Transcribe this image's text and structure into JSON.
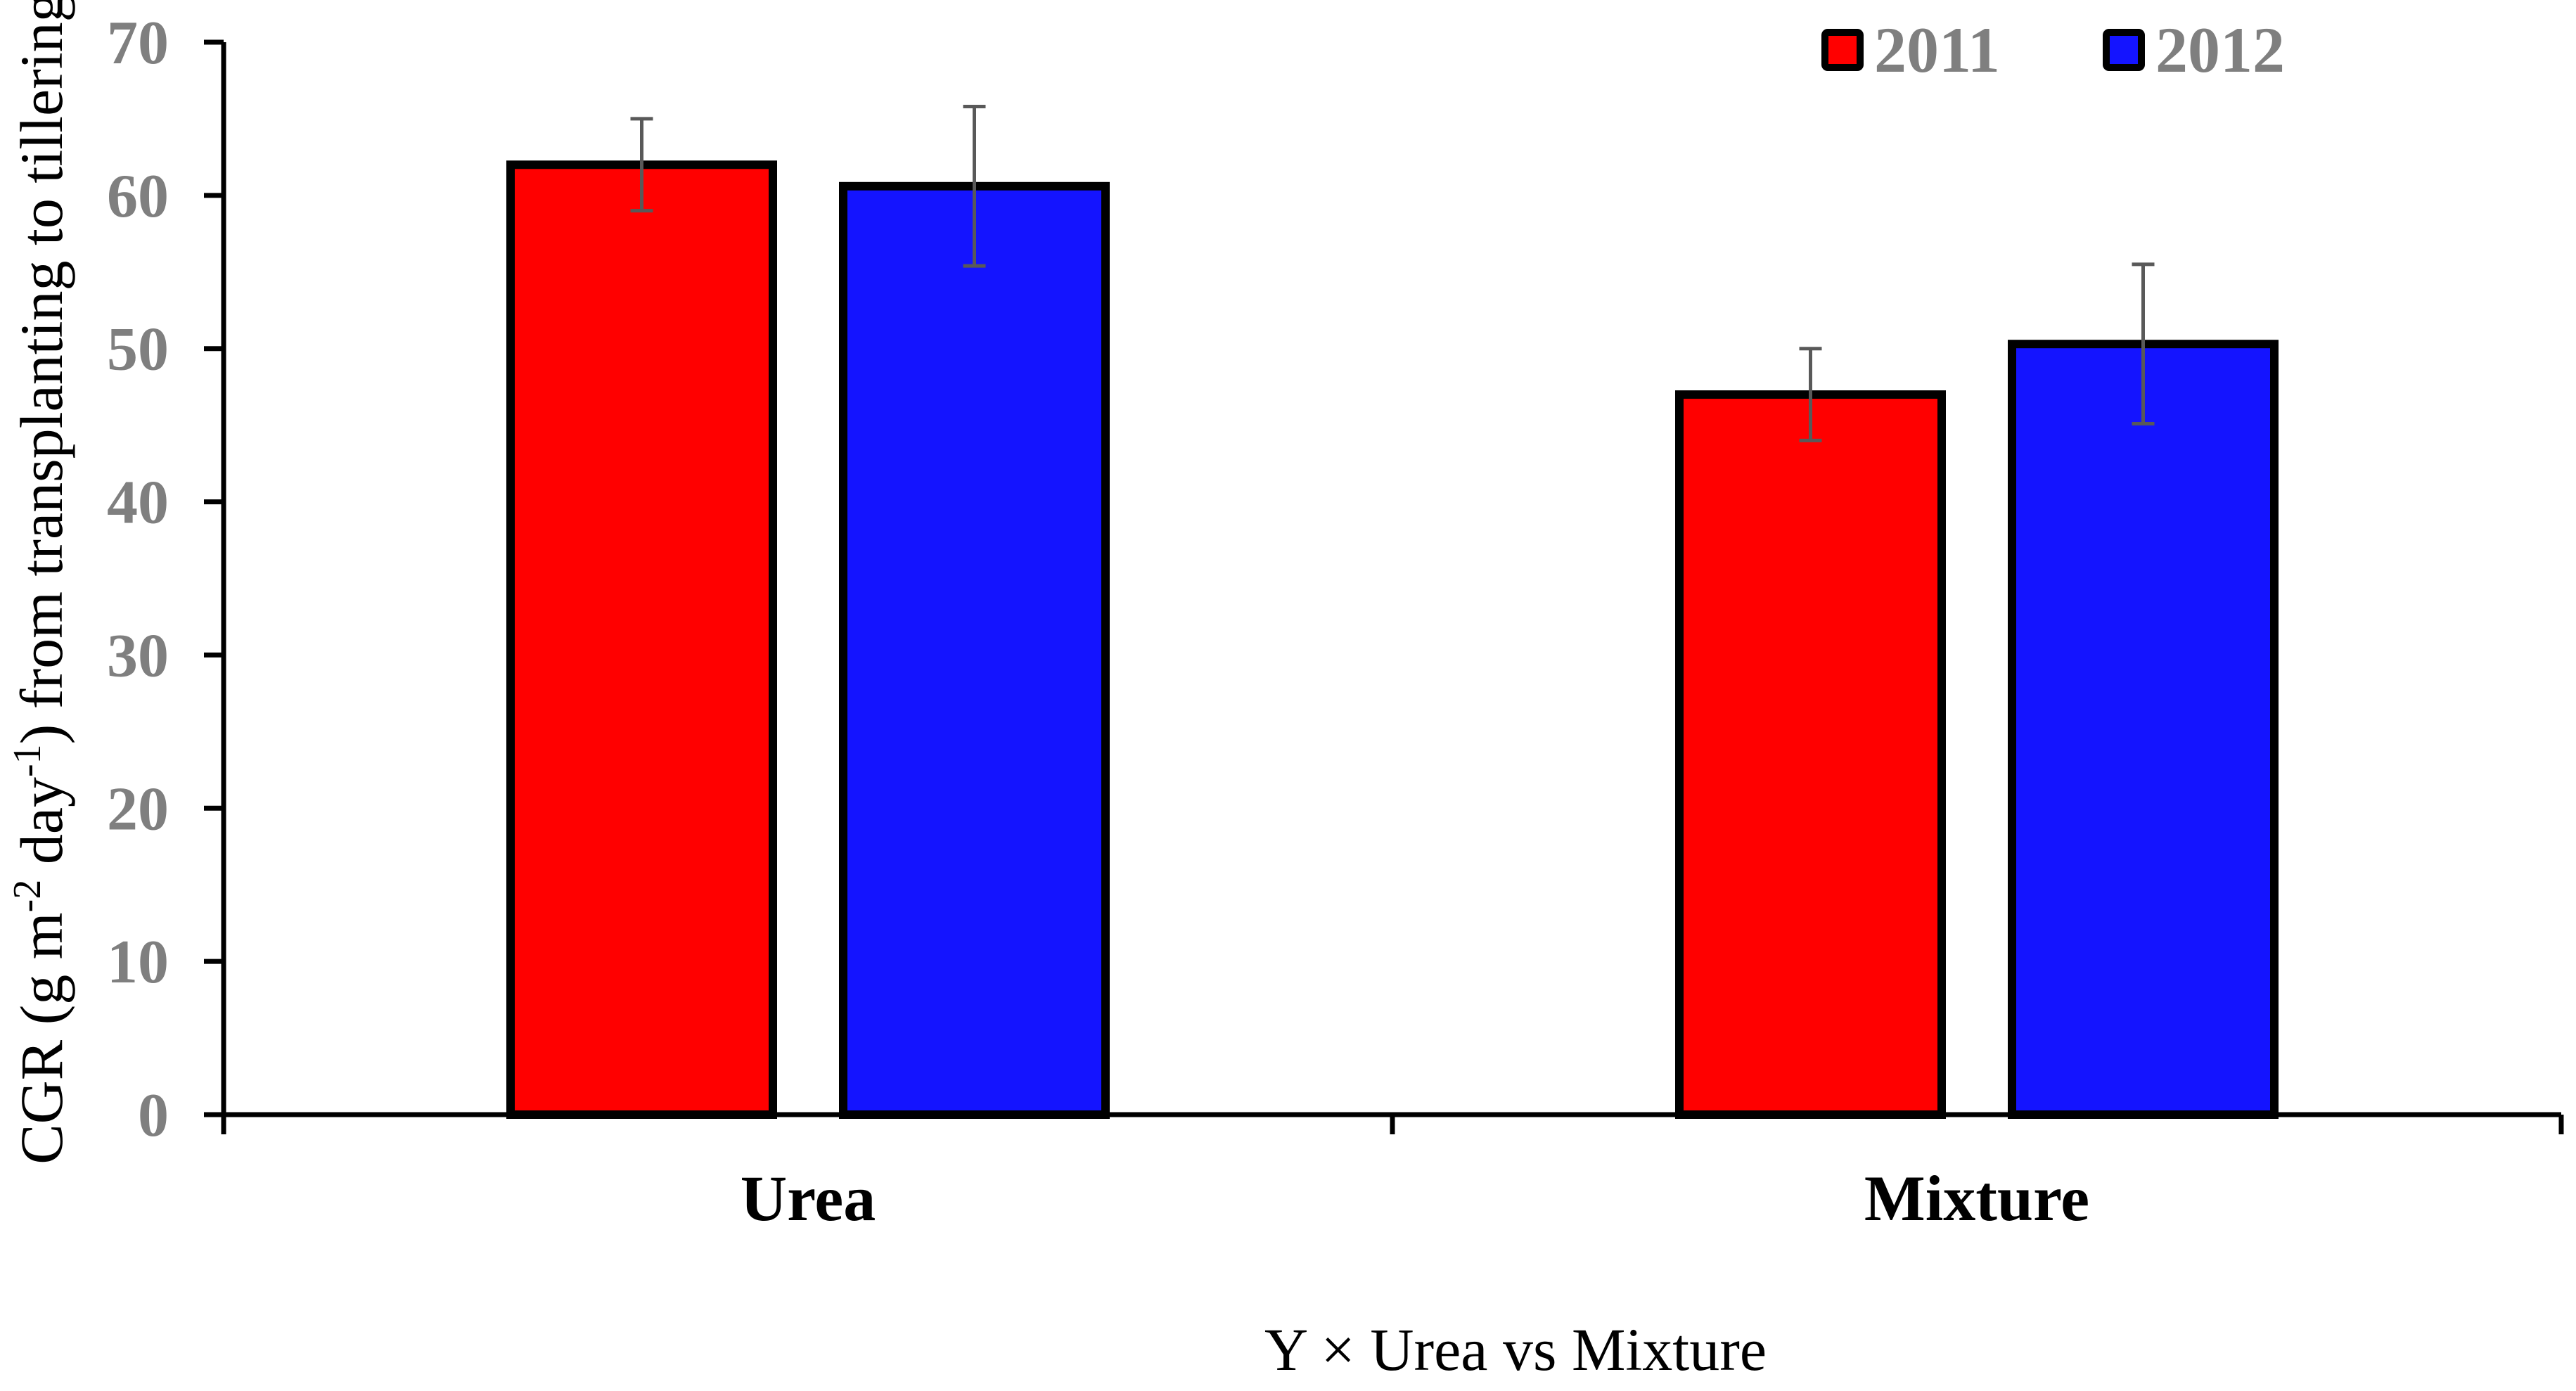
{
  "chart_data": {
    "type": "bar",
    "categories": [
      "Urea",
      "Mixture"
    ],
    "series": [
      {
        "name": "2011",
        "color": "#ff0000",
        "values": [
          62.0,
          47.0
        ],
        "errors": [
          3.0,
          3.0
        ]
      },
      {
        "name": "2012",
        "color": "#1414ff",
        "values": [
          60.6,
          50.3
        ],
        "errors": [
          5.2,
          5.2
        ]
      }
    ],
    "ylim": [
      0,
      70
    ],
    "yticks": [
      0,
      10,
      20,
      30,
      40,
      50,
      60,
      70
    ],
    "xlabel": "Y × Urea vs Mixture",
    "ylabel": {
      "part1": "CGR (g m",
      "sup1": "-2",
      "part2": " day",
      "sup2": "-1",
      "part3": ") from transplanting to tillering"
    },
    "legend_position": "top-right",
    "grid": false
  }
}
